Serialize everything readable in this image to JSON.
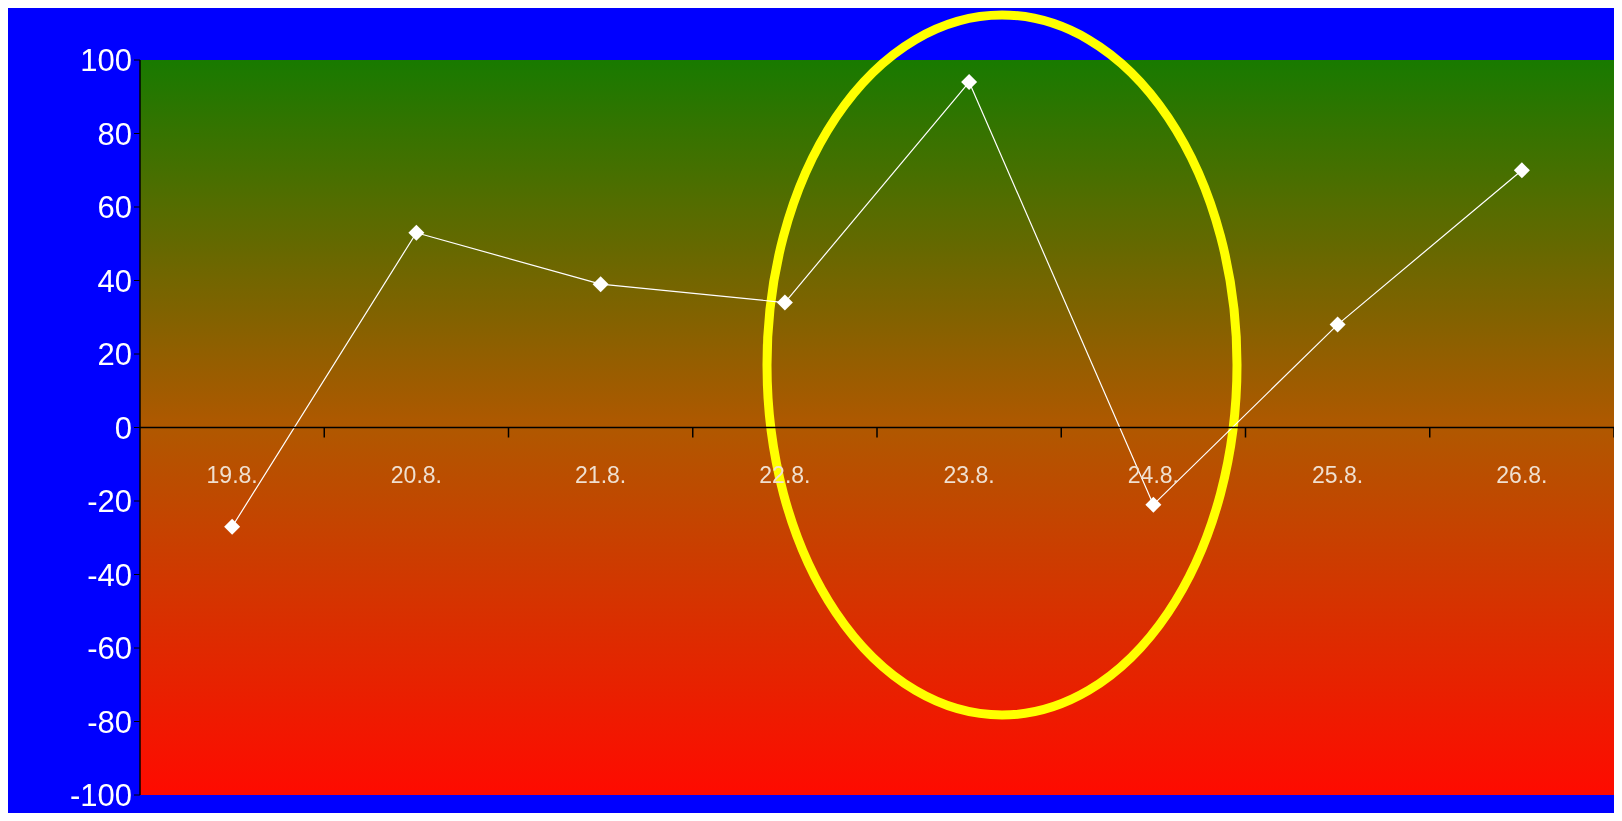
{
  "chart_data": {
    "type": "line",
    "categories": [
      "19.8.",
      "20.8.",
      "21.8.",
      "22.8.",
      "23.8.",
      "24.8.",
      "25.8.",
      "26.8."
    ],
    "series": [
      {
        "color": "#ffffff",
        "values": [
          -27,
          53,
          39,
          34,
          94,
          -21,
          28,
          70
        ]
      }
    ],
    "ylim": [
      -100,
      100
    ],
    "yticks": [
      -100,
      -80,
      -60,
      -40,
      -20,
      0,
      20,
      40,
      60,
      80,
      100
    ],
    "grid": false,
    "marker": "diamond",
    "line_style": "solid"
  }
}
